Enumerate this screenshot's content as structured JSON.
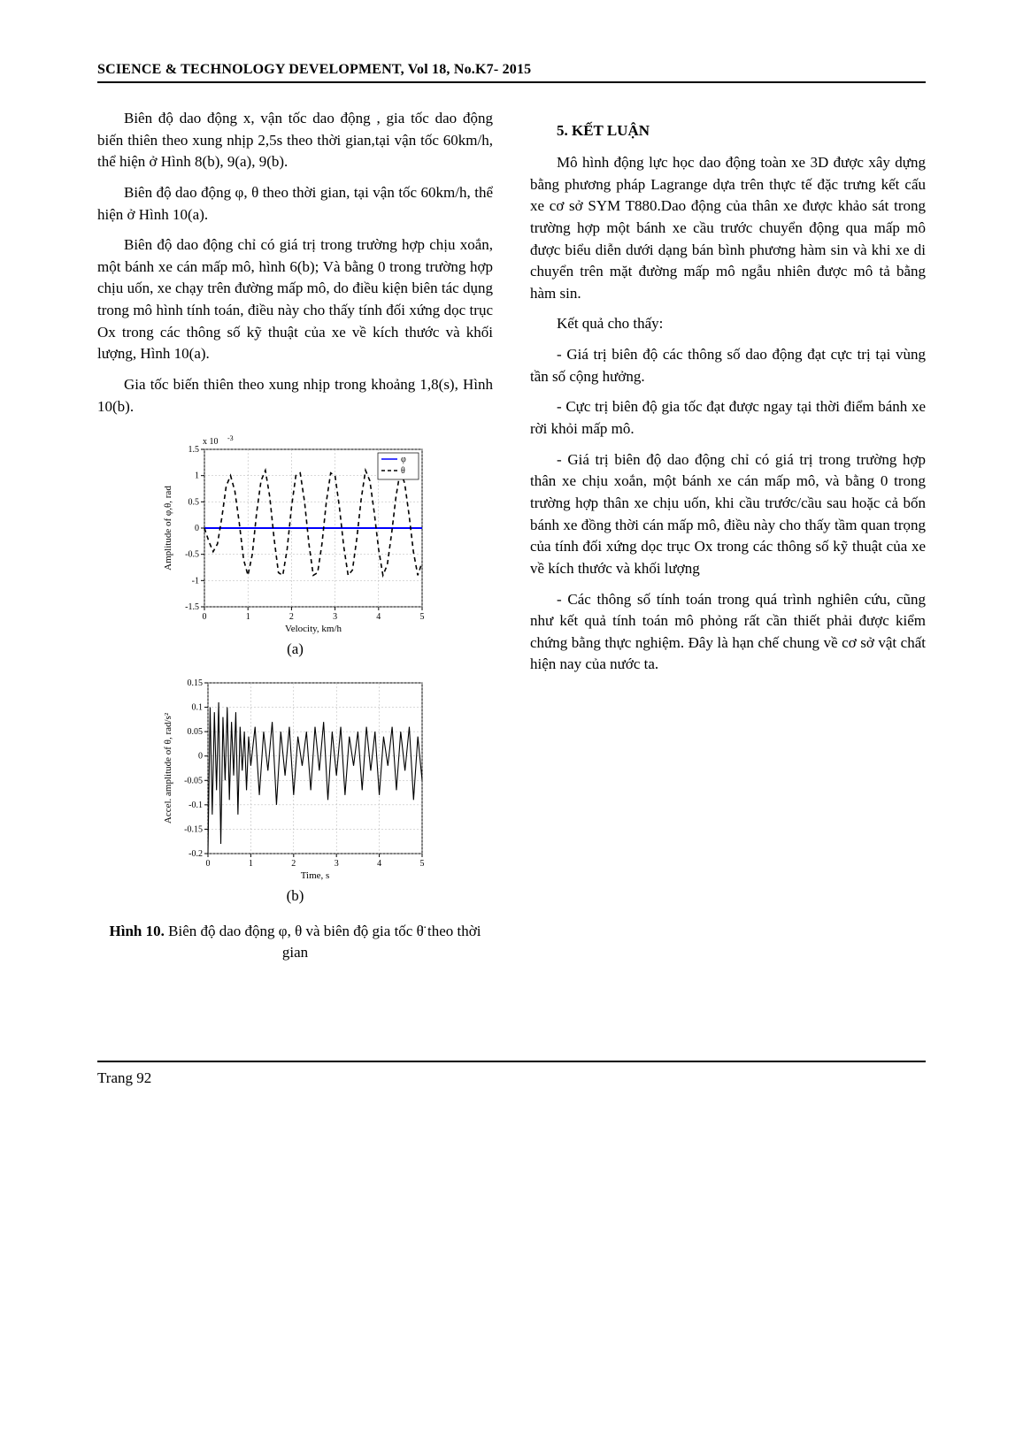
{
  "header": "SCIENCE & TECHNOLOGY DEVELOPMENT, Vol 18, No.K7- 2015",
  "left": {
    "p1": "Biên độ dao động x, vận tốc dao động , gia tốc dao động biến thiên theo xung nhịp 2,5s theo thời gian,tại vận tốc 60km/h, thể hiện ở Hình 8(b), 9(a), 9(b).",
    "p2": "Biên độ dao động φ, θ theo thời gian, tại vận tốc 60km/h, thể hiện ở Hình 10(a).",
    "p3": "Biên độ dao động chỉ có giá trị trong trường hợp chịu xoắn, một bánh xe cán mấp mô, hình 6(b); Và bằng 0 trong trường hợp chịu uốn, xe chạy trên đường mấp mô, do điều kiện biên tác dụng trong mô hình tính toán, điều này cho thấy tính đối xứng dọc trục Ox trong các thông số kỹ thuật của xe về kích thước và khối lượng, Hình 10(a).",
    "p4": "Gia tốc biến thiên theo xung nhịp trong khoảng 1,8(s), Hình 10(b).",
    "chart_a": {
      "type": "line",
      "exponent_label": "x 10",
      "exponent_sup": "-3",
      "ylabel": "Amplitude of φ,θ, rad",
      "xlabel": "Velocity, km/h",
      "xlim": [
        0,
        5
      ],
      "ylim": [
        -1.5,
        1.5
      ],
      "xticks": [
        0,
        1,
        2,
        3,
        4,
        5
      ],
      "yticks": [
        -1.5,
        -1,
        -0.5,
        0,
        0.5,
        1,
        1.5
      ],
      "background_color": "#ffffff",
      "axis_color": "#000000",
      "grid_color": "#b0b0b0",
      "label_fontsize": 11,
      "tick_fontsize": 10,
      "legend": {
        "items": [
          "φ",
          "θ"
        ],
        "colors": [
          "#0000ff",
          "#000000"
        ],
        "position": "top-right",
        "dash": [
          "solid",
          "dashed"
        ]
      },
      "series": [
        {
          "name": "phi",
          "color": "#0000ff",
          "dash": "solid",
          "line_width": 2,
          "x": [
            0,
            5
          ],
          "y": [
            0,
            0
          ]
        },
        {
          "name": "theta",
          "color": "#000000",
          "dash": "dashed",
          "line_width": 1.6,
          "x": [
            0,
            0.1,
            0.2,
            0.3,
            0.4,
            0.5,
            0.6,
            0.7,
            0.8,
            0.9,
            1.0,
            1.1,
            1.2,
            1.3,
            1.4,
            1.5,
            1.6,
            1.7,
            1.8,
            1.9,
            2.0,
            2.1,
            2.2,
            2.3,
            2.4,
            2.5,
            2.6,
            2.7,
            2.8,
            2.9,
            3.0,
            3.1,
            3.2,
            3.3,
            3.4,
            3.5,
            3.6,
            3.7,
            3.8,
            3.9,
            4.0,
            4.1,
            4.2,
            4.3,
            4.4,
            4.5,
            4.6,
            4.7,
            4.8,
            4.9,
            5.0
          ],
          "y": [
            0,
            -0.25,
            -0.45,
            -0.3,
            0.2,
            0.8,
            1.0,
            0.7,
            0.1,
            -0.6,
            -0.9,
            -0.5,
            0.3,
            0.9,
            1.1,
            0.6,
            -0.2,
            -0.85,
            -0.9,
            -0.4,
            0.4,
            1.0,
            1.05,
            0.5,
            -0.3,
            -0.9,
            -0.85,
            -0.3,
            0.5,
            1.05,
            1.0,
            0.4,
            -0.35,
            -0.9,
            -0.8,
            -0.2,
            0.55,
            1.1,
            0.9,
            0.3,
            -0.4,
            -0.9,
            -0.7,
            -0.1,
            0.6,
            1.1,
            0.85,
            0.25,
            -0.45,
            -0.9,
            -0.65
          ]
        }
      ],
      "sublabel": "(a)"
    },
    "chart_b": {
      "type": "line",
      "ylabel": "Accel. amplitude of θ, rad/s²",
      "xlabel": "Time, s",
      "xlim": [
        0,
        5
      ],
      "ylim": [
        -0.2,
        0.15
      ],
      "xticks": [
        0,
        1,
        2,
        3,
        4,
        5
      ],
      "yticks": [
        -0.2,
        -0.15,
        -0.1,
        -0.05,
        0,
        0.05,
        0.1,
        0.15
      ],
      "background_color": "#ffffff",
      "axis_color": "#000000",
      "grid_color": "#b0b0b0",
      "label_fontsize": 11,
      "tick_fontsize": 10,
      "series": [
        {
          "name": "theta_accel",
          "color": "#000000",
          "dash": "solid",
          "line_width": 1.1,
          "x": [
            0,
            0.05,
            0.1,
            0.15,
            0.2,
            0.25,
            0.3,
            0.35,
            0.4,
            0.45,
            0.5,
            0.55,
            0.6,
            0.65,
            0.7,
            0.75,
            0.8,
            0.85,
            0.9,
            0.95,
            1.0,
            1.1,
            1.2,
            1.3,
            1.4,
            1.5,
            1.6,
            1.7,
            1.8,
            1.9,
            2.0,
            2.1,
            2.2,
            2.3,
            2.4,
            2.5,
            2.6,
            2.7,
            2.8,
            2.9,
            3.0,
            3.1,
            3.2,
            3.3,
            3.4,
            3.5,
            3.6,
            3.7,
            3.8,
            3.9,
            4.0,
            4.1,
            4.2,
            4.3,
            4.4,
            4.5,
            4.6,
            4.7,
            4.8,
            4.9,
            5.0
          ],
          "y": [
            -0.2,
            0.1,
            -0.12,
            0.09,
            -0.07,
            0.11,
            -0.18,
            0.08,
            -0.05,
            0.1,
            -0.09,
            0.07,
            -0.04,
            0.09,
            -0.12,
            0.06,
            -0.03,
            0.05,
            -0.07,
            0.04,
            -0.02,
            0.06,
            -0.08,
            0.05,
            -0.03,
            0.07,
            -0.1,
            0.05,
            -0.04,
            0.06,
            -0.08,
            0.04,
            -0.02,
            0.05,
            -0.07,
            0.06,
            -0.03,
            0.07,
            -0.09,
            0.05,
            -0.04,
            0.06,
            -0.08,
            0.04,
            -0.02,
            0.05,
            -0.07,
            0.06,
            -0.03,
            0.05,
            -0.08,
            0.04,
            -0.02,
            0.06,
            -0.07,
            0.05,
            -0.03,
            0.06,
            -0.09,
            0.04,
            -0.05
          ]
        }
      ],
      "sublabel": "(b)"
    },
    "figure_caption_bold": "Hình 10.",
    "figure_caption_rest": " Biên độ dao động φ, θ và biên độ gia tốc θ̈ theo thời gian"
  },
  "right": {
    "section_title": "5. KẾT LUẬN",
    "p1": "Mô hình động lực học dao động toàn xe 3D được xây dựng bằng phương pháp Lagrange dựa trên thực tế đặc trưng kết cấu xe cơ sở SYM T880.Dao động của thân xe được khảo sát trong trường hợp một bánh xe cầu trước chuyển động qua mấp mô được biểu diễn dưới dạng bán bình phương hàm sin và khi xe di chuyển trên mặt đường mấp mô ngẫu nhiên được mô tả bằng hàm sin.",
    "p2": "Kết quả cho thấy:",
    "p3": "- Giá trị biên độ các thông số dao động đạt cực trị tại vùng tần số cộng hưởng.",
    "p4": "- Cực trị biên độ gia tốc đạt được ngay tại thời điểm bánh xe rời khỏi mấp mô.",
    "p5": "- Giá trị biên độ dao động chỉ có giá trị trong trường hợp thân xe chịu xoắn, một bánh xe cán mấp mô, và bằng 0 trong trường hợp thân xe chịu uốn, khi cầu trước/cầu sau hoặc cả bốn bánh xe đồng thời cán mấp mô, điều này cho thấy tầm quan trọng của tính đối xứng dọc trục Ox trong các thông số kỹ thuật của xe về kích thước và khối lượng",
    "p6": "- Các thông số tính toán trong quá trình nghiên cứu, cũng như kết quả tính toán mô phỏng rất cần thiết phải được kiểm chứng bằng thực nghiệm. Đây là hạn chế chung về cơ sở vật chất hiện nay của nước ta."
  },
  "footer": "Trang 92"
}
